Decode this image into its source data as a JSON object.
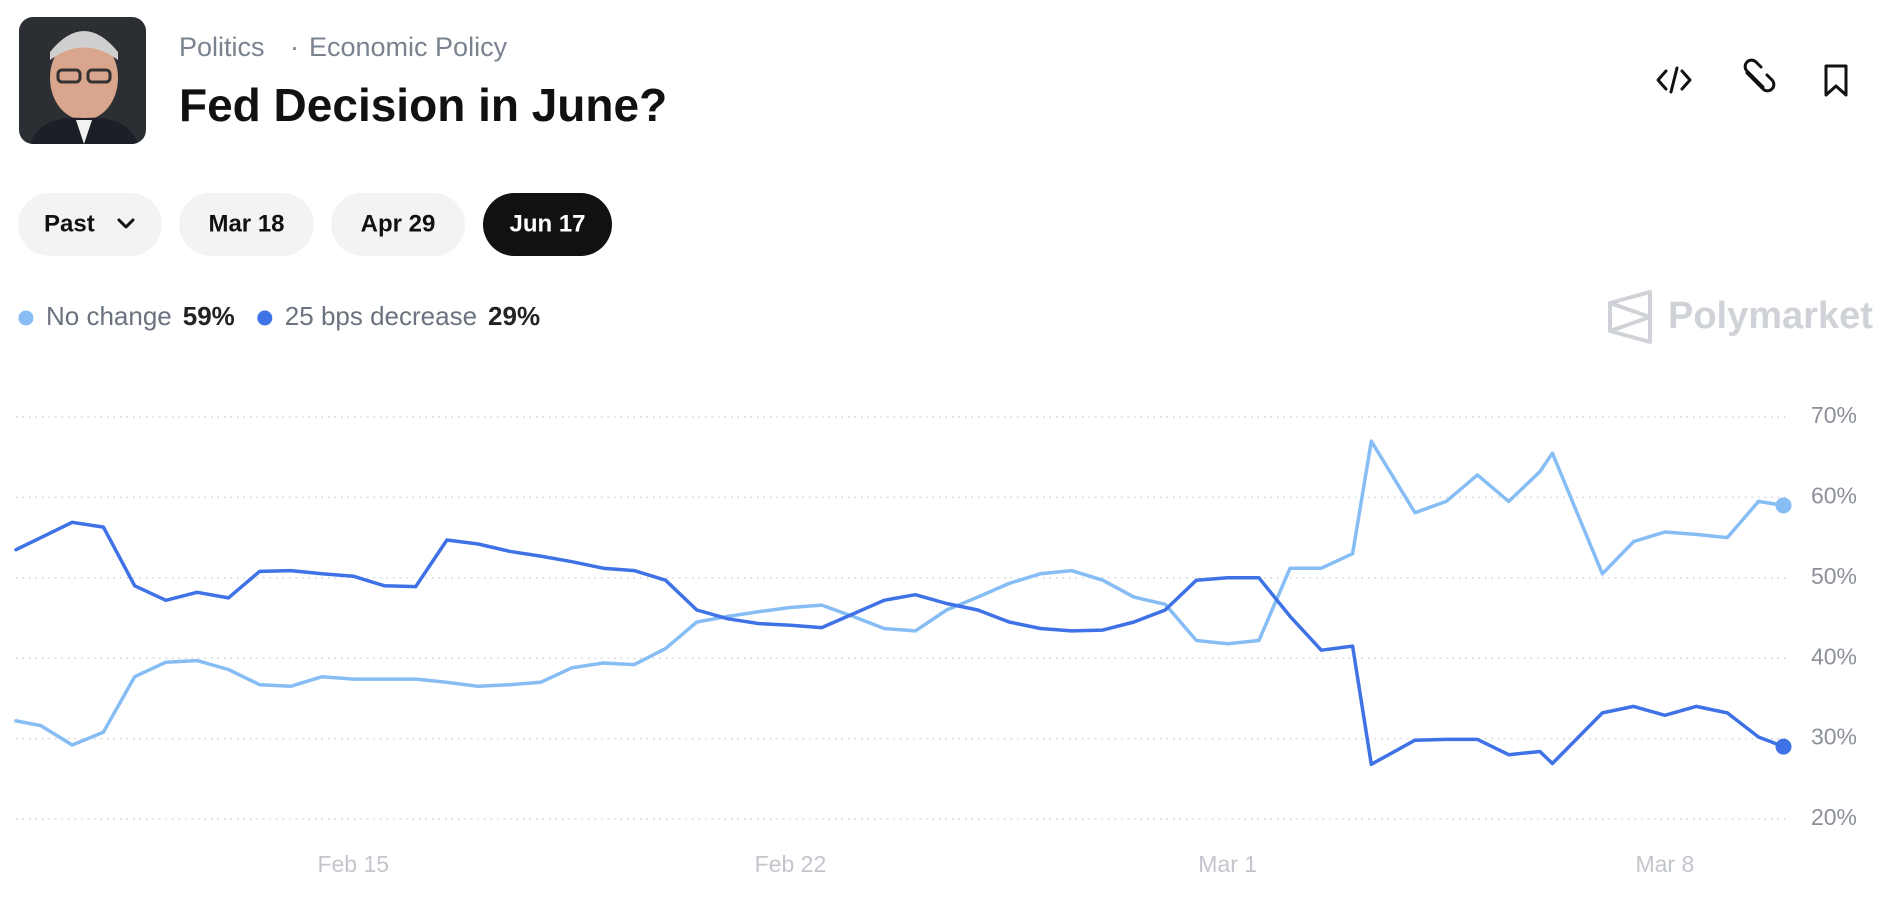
{
  "header": {
    "category": "Politics",
    "separator": "·",
    "subcategory": "Economic Policy",
    "title": "Fed Decision in June?"
  },
  "tabs": [
    {
      "label": "Past",
      "active": false
    },
    {
      "label": "Mar 18",
      "active": false
    },
    {
      "label": "Apr 29",
      "active": false
    },
    {
      "label": "Jun 17",
      "active": true
    }
  ],
  "brand": "Polymarket",
  "chart_data": {
    "type": "line",
    "x": [
      -5.4,
      -5.0,
      -4.5,
      -4.0,
      -3.5,
      -3.0,
      -2.5,
      -2.0,
      -1.5,
      -1.0,
      -0.5,
      0,
      0.5,
      1.0,
      1.5,
      2.0,
      2.5,
      3.0,
      3.5,
      4.0,
      4.5,
      5.0,
      5.5,
      6.0,
      6.5,
      7.0,
      7.5,
      8.0,
      8.5,
      9.0,
      9.5,
      10.0,
      10.5,
      11.0,
      11.5,
      12.0,
      12.5,
      13.0,
      13.5,
      14.0,
      14.5,
      15.0,
      15.5,
      16.0,
      16.3,
      17.0,
      17.5,
      18.0,
      18.5,
      19.0,
      19.2,
      20.0,
      20.5,
      21.0,
      21.5,
      22.0,
      22.5,
      22.9
    ],
    "xlim": [
      -5.4,
      23.1
    ],
    "xticks": [
      {
        "value": 0,
        "label": "Feb 15"
      },
      {
        "value": 7,
        "label": "Feb 22"
      },
      {
        "value": 14,
        "label": "Mar 1"
      },
      {
        "value": 21,
        "label": "Mar 8"
      }
    ],
    "ylim": [
      20,
      70
    ],
    "yticks": [
      {
        "value": 20,
        "label": "20%"
      },
      {
        "value": 30,
        "label": "30%"
      },
      {
        "value": 40,
        "label": "40%"
      },
      {
        "value": 50,
        "label": "50%"
      },
      {
        "value": 60,
        "label": "60%"
      },
      {
        "value": 70,
        "label": "70%"
      }
    ],
    "grid": true,
    "series": [
      {
        "name": "No change",
        "color": "#86bdf5",
        "current_value": 59,
        "current_label": "59%",
        "values": [
          32.2,
          31.6,
          29.2,
          30.8,
          37.7,
          39.5,
          39.7,
          38.6,
          36.7,
          36.5,
          37.7,
          37.4,
          37.4,
          37.4,
          37.0,
          36.5,
          36.7,
          37.0,
          38.8,
          39.4,
          39.2,
          41.2,
          44.5,
          45.2,
          45.8,
          46.3,
          46.6,
          45.2,
          43.7,
          43.4,
          46.0,
          47.6,
          49.3,
          50.5,
          50.9,
          49.7,
          47.6,
          46.7,
          42.2,
          41.8,
          42.2,
          51.2,
          51.2,
          53.0,
          67.0,
          58.1,
          59.5,
          62.8,
          59.5,
          63.2,
          65.5,
          50.5,
          54.5,
          55.7,
          55.4,
          55.0,
          59.5,
          59
        ]
      },
      {
        "name": "25 bps decrease",
        "color": "#3f72e6",
        "current_value": 29,
        "current_label": "29%",
        "values": [
          53.5,
          55.0,
          56.9,
          56.3,
          49.0,
          47.2,
          48.2,
          47.5,
          50.8,
          50.9,
          50.5,
          50.2,
          49.0,
          48.9,
          54.7,
          54.2,
          53.3,
          52.7,
          52.0,
          51.2,
          50.9,
          49.7,
          46.0,
          44.9,
          44.3,
          44.1,
          43.8,
          45.5,
          47.2,
          47.9,
          46.8,
          46.0,
          44.5,
          43.7,
          43.4,
          43.5,
          44.5,
          46.0,
          49.7,
          50.0,
          50.0,
          45.2,
          41.0,
          41.5,
          26.8,
          29.8,
          29.9,
          29.9,
          28.0,
          28.4,
          26.9,
          33.2,
          34.0,
          32.9,
          34.0,
          33.2,
          30.2,
          29
        ]
      }
    ]
  }
}
